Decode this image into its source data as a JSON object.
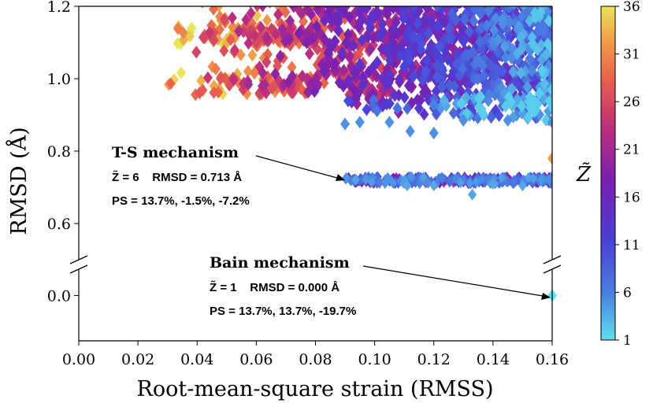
{
  "chart_data": {
    "type": "scatter",
    "xlabel": "Root-mean-square strain (RMSS)",
    "ylabel": "RMSD (Å)",
    "xlim": [
      0.0,
      0.16
    ],
    "ylim_upper": [
      0.5,
      1.2
    ],
    "ylim_lower": [
      -0.12,
      0.07
    ],
    "x_ticks": [
      "0.00",
      "0.02",
      "0.04",
      "0.06",
      "0.08",
      "0.10",
      "0.12",
      "0.14",
      "0.16"
    ],
    "y_ticks_upper": [
      "0.6",
      "0.8",
      "1.0",
      "1.2"
    ],
    "y_ticks_lower": [
      "0.0"
    ],
    "colorbar": {
      "label": "Z̃",
      "min": 1,
      "max": 36,
      "ticks": [
        "1",
        "6",
        "11",
        "16",
        "21",
        "26",
        "31",
        "36"
      ],
      "colors": [
        "#5ee0ef",
        "#4a7fe0",
        "#4b3fd6",
        "#7a1fb0",
        "#c0307a",
        "#e8604a",
        "#f0a048",
        "#e6e658"
      ]
    },
    "clusters": [
      {
        "name": "upper band",
        "x_range": [
          0.028,
          0.16
        ],
        "y_range": [
          0.88,
          1.2
        ]
      },
      {
        "name": "T-S band",
        "x_range": [
          0.09,
          0.16
        ],
        "y_range": [
          0.71,
          0.73
        ]
      },
      {
        "name": "Bain point",
        "x": 0.16,
        "y": 0.0,
        "z": 1
      }
    ],
    "annotations": [
      {
        "title": "T-S mechanism",
        "line1": "Z̃ = 6    RMSD = 0.713 Å",
        "line2": "PS = 13.7%, -1.5%, -7.2%",
        "target_x": 0.09,
        "target_y": 0.713
      },
      {
        "title": "Bain mechanism",
        "line1": "Z̃ = 1    RMSD = 0.000 Å",
        "line2": "PS = 13.7%, 13.7%, -19.7%",
        "target_x": 0.16,
        "target_y": 0.0
      }
    ]
  }
}
